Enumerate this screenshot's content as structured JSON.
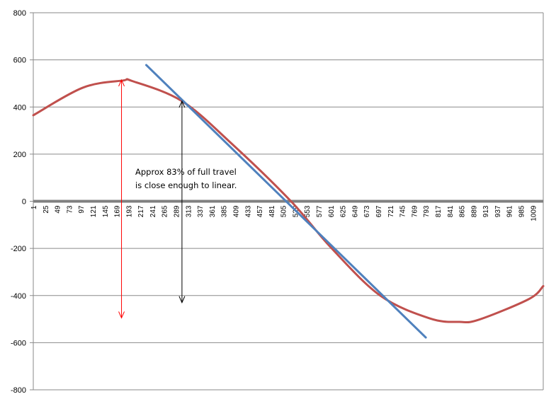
{
  "chart_data": {
    "type": "line",
    "title": "",
    "xlabel": "",
    "ylabel": "",
    "ylim": [
      -800,
      800
    ],
    "y_ticks": [
      800,
      600,
      400,
      200,
      0,
      -200,
      -400,
      -600,
      -800
    ],
    "x_range": [
      1,
      1030
    ],
    "x_tick_labels": [
      "1",
      "25",
      "49",
      "73",
      "97",
      "121",
      "145",
      "169",
      "193",
      "217",
      "241",
      "265",
      "289",
      "313",
      "337",
      "361",
      "385",
      "409",
      "433",
      "457",
      "481",
      "505",
      "529",
      "553",
      "577",
      "601",
      "625",
      "649",
      "673",
      "697",
      "721",
      "745",
      "769",
      "793",
      "817",
      "841",
      "865",
      "889",
      "913",
      "937",
      "961",
      "985",
      "1009"
    ],
    "grid": "horizontal",
    "series": [
      {
        "color": "#C0504D",
        "x": [
          1,
          101,
          181,
          201,
          301,
          401,
          521,
          601,
          701,
          801,
          861,
          901,
          1001,
          1030
        ],
        "y": [
          365,
          482,
          512,
          510,
          425,
          245,
          0,
          -195,
          -400,
          -497,
          -512,
          -502,
          -415,
          -360
        ]
      },
      {
        "color": "#4F81BD",
        "x": [
          229,
          793
        ],
        "y": [
          578,
          -578
        ]
      }
    ],
    "annotations": [
      {
        "lines": [
          "Approx 83% of full travel",
          "is close enough to linear."
        ],
        "x": 289,
        "y": 140
      },
      {
        "arrow": "red",
        "x": 179,
        "y_top": 515,
        "y_bottom": -495,
        "color": "#FF0000"
      },
      {
        "arrow": "black",
        "x": 301,
        "y_top": 425,
        "y_bottom": -430,
        "color": "#000000"
      }
    ],
    "colors": {
      "axis_zero": "#808080",
      "gridline": "#8A8A8A",
      "frame": "#8A8A8A"
    }
  }
}
